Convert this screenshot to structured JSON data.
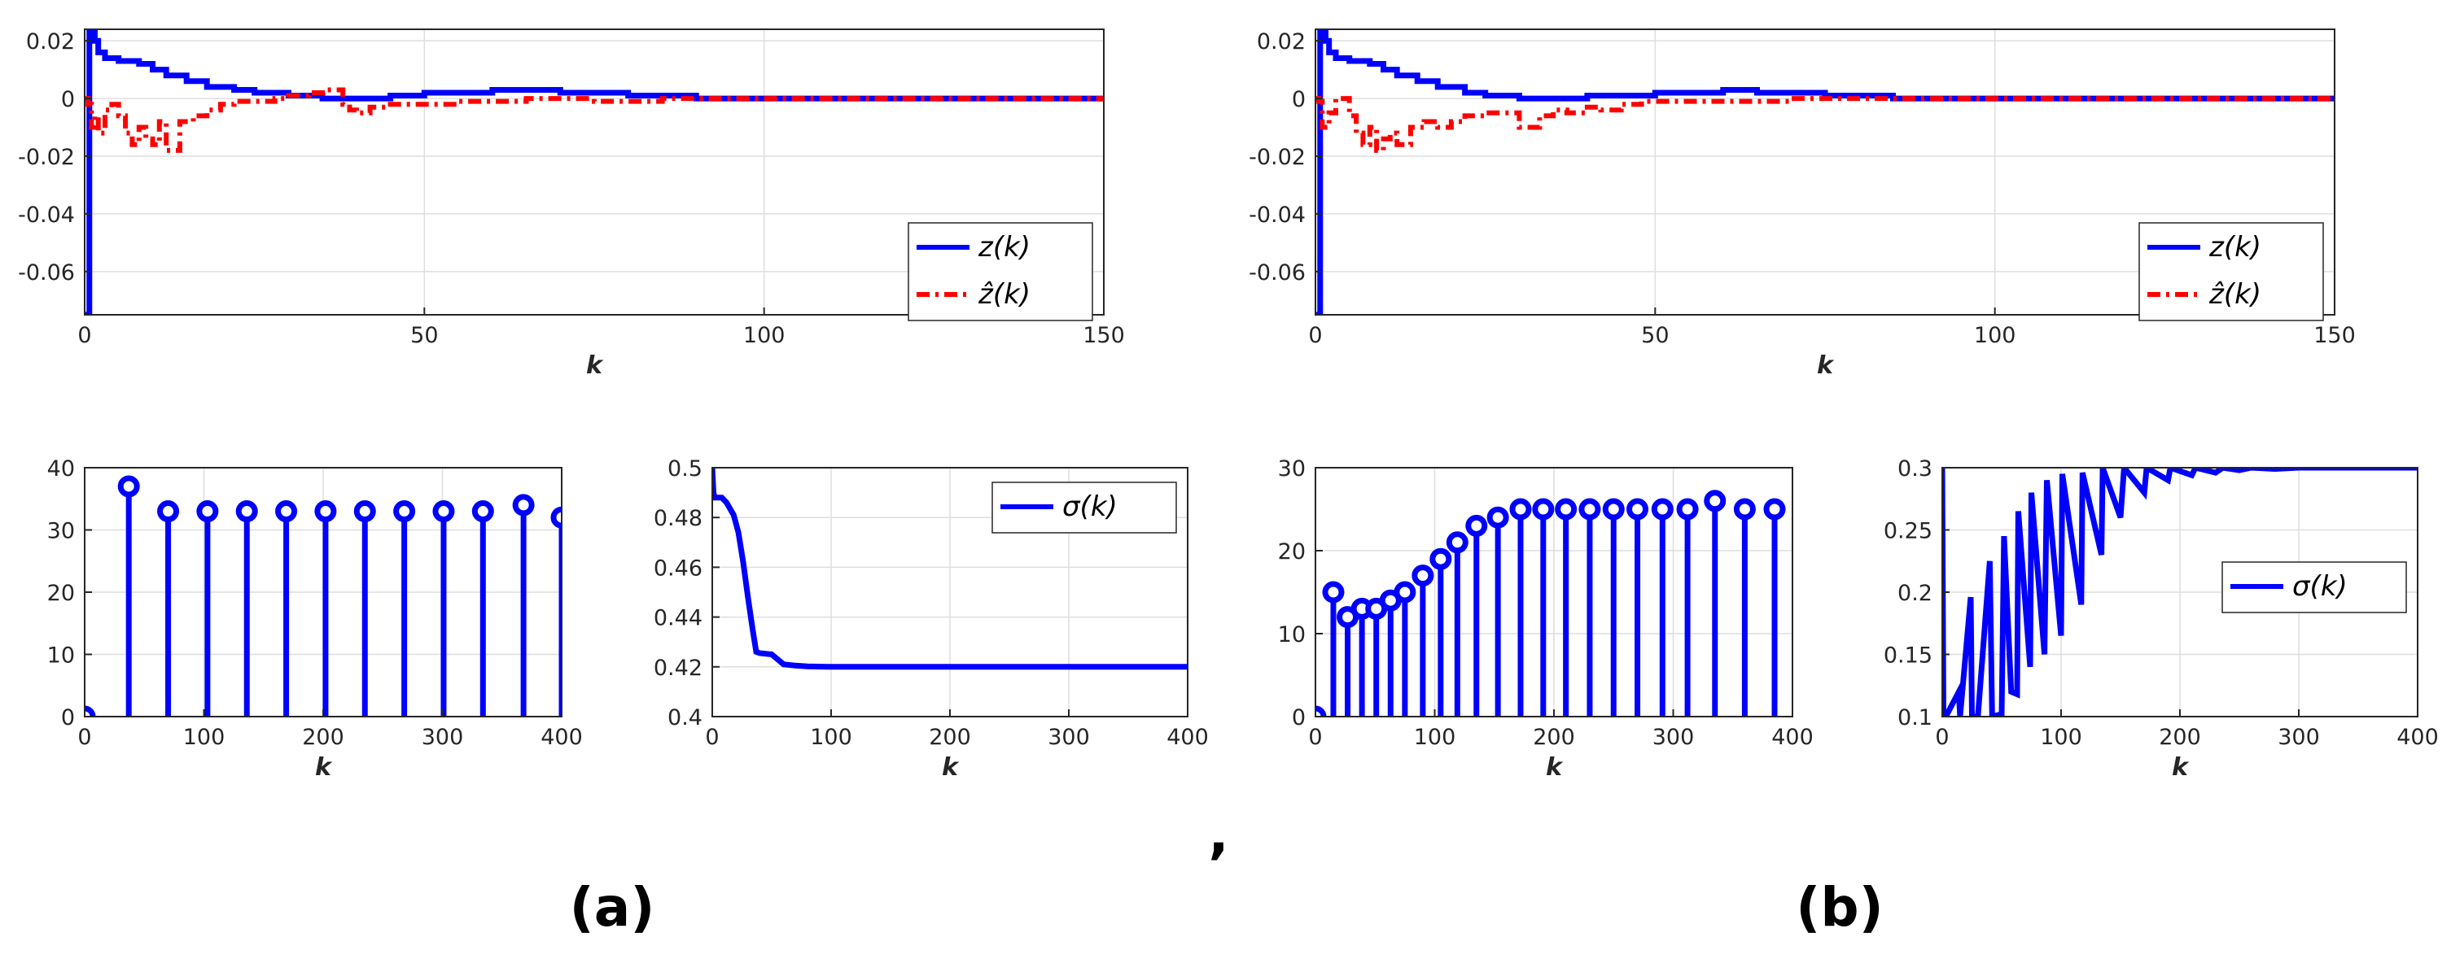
{
  "figure": {
    "panel_a_label": "(a)",
    "panel_b_label": "(b)",
    "separator": ","
  },
  "colors": {
    "blue": "#0000ff",
    "red": "#ff0000",
    "grid": "#dedede",
    "axis": "#262626"
  },
  "chart_data": [
    {
      "id": "a_top",
      "type": "line",
      "xlabel": "k",
      "ylabel": "",
      "xlim": [
        0,
        150
      ],
      "ylim": [
        -0.075,
        0.024
      ],
      "xticks": [
        0,
        50,
        100,
        150
      ],
      "xtick_labels": [
        "0",
        "50",
        "100",
        "150"
      ],
      "yticks": [
        0.02,
        0,
        -0.02,
        -0.04,
        -0.06
      ],
      "ytick_labels": [
        "0.02",
        "0",
        "-0.02",
        "-0.04",
        "-0.06"
      ],
      "grid": true,
      "legend": "right",
      "legend_labels": [
        "z(k)",
        "ẑ(k)"
      ],
      "series": [
        {
          "name": "z(k)",
          "style": "solid",
          "color": "#0000ff",
          "x": [
            0,
            0.5,
            0.7,
            1,
            1.5,
            2,
            3,
            5,
            8,
            10,
            12,
            15,
            18,
            22,
            25,
            30,
            35,
            40,
            45,
            50,
            55,
            60,
            65,
            70,
            75,
            80,
            85,
            90,
            100,
            110,
            120,
            130,
            140,
            150
          ],
          "y": [
            -0.075,
            -0.075,
            0.024,
            0.024,
            0.02,
            0.016,
            0.014,
            0.013,
            0.012,
            0.01,
            0.008,
            0.006,
            0.004,
            0.003,
            0.002,
            0.001,
            0,
            0,
            0.001,
            0.002,
            0.002,
            0.003,
            0.003,
            0.002,
            0.002,
            0.001,
            0.001,
            0,
            0,
            0,
            0,
            0,
            0,
            0
          ]
        },
        {
          "name": "ẑ(k)",
          "style": "dashdot",
          "color": "#ff0000",
          "x": [
            0,
            0.5,
            1,
            1.5,
            2,
            3,
            4,
            5,
            6,
            7,
            8,
            9,
            10,
            11,
            12,
            14,
            16,
            18,
            20,
            22,
            25,
            28,
            30,
            33,
            35,
            37,
            38,
            39,
            40,
            42,
            45,
            50,
            55,
            60,
            65,
            70,
            75,
            80,
            85,
            90,
            100,
            110,
            120,
            130,
            140,
            150
          ],
          "y": [
            0,
            -0.002,
            -0.01,
            -0.006,
            -0.012,
            -0.004,
            -0.002,
            -0.006,
            -0.012,
            -0.016,
            -0.01,
            -0.014,
            -0.016,
            -0.008,
            -0.018,
            -0.008,
            -0.006,
            -0.004,
            -0.002,
            -0.001,
            -0.001,
            0,
            0.001,
            0.002,
            0.003,
            0.003,
            -0.002,
            -0.004,
            -0.005,
            -0.003,
            -0.002,
            -0.002,
            -0.001,
            -0.001,
            0,
            0,
            -0.001,
            -0.001,
            0,
            0,
            0,
            0,
            0,
            0,
            0,
            0
          ]
        }
      ]
    },
    {
      "id": "b_top",
      "type": "line",
      "xlabel": "k",
      "ylabel": "",
      "xlim": [
        0,
        150
      ],
      "ylim": [
        -0.075,
        0.024
      ],
      "xticks": [
        0,
        50,
        100,
        150
      ],
      "xtick_labels": [
        "0",
        "50",
        "100",
        "150"
      ],
      "yticks": [
        0.02,
        0,
        -0.02,
        -0.04,
        -0.06
      ],
      "ytick_labels": [
        "0.02",
        "0",
        "-0.02",
        "-0.04",
        "-0.06"
      ],
      "grid": true,
      "legend": "right",
      "legend_labels": [
        "z(k)",
        "ẑ(k)"
      ],
      "series": [
        {
          "name": "z(k)",
          "style": "solid",
          "color": "#0000ff",
          "x": [
            0,
            0.5,
            0.7,
            1,
            1.5,
            2,
            3,
            5,
            8,
            10,
            12,
            15,
            18,
            22,
            25,
            30,
            35,
            40,
            45,
            50,
            55,
            60,
            65,
            70,
            75,
            80,
            85,
            90,
            100,
            110,
            120,
            130,
            140,
            150
          ],
          "y": [
            -0.075,
            -0.075,
            0.024,
            0.024,
            0.02,
            0.016,
            0.014,
            0.013,
            0.012,
            0.01,
            0.008,
            0.006,
            0.004,
            0.002,
            0.001,
            0,
            0,
            0.001,
            0.001,
            0.002,
            0.002,
            0.003,
            0.002,
            0.002,
            0.001,
            0.001,
            0,
            0,
            0,
            0,
            0,
            0,
            0,
            0
          ]
        },
        {
          "name": "ẑ(k)",
          "style": "dashdot",
          "color": "#ff0000",
          "x": [
            0,
            0.5,
            1,
            2,
            3,
            4,
            5,
            6,
            7,
            8,
            9,
            10,
            11,
            12,
            14,
            16,
            18,
            20,
            22,
            25,
            28,
            30,
            33,
            35,
            37,
            40,
            42,
            45,
            48,
            50,
            55,
            60,
            65,
            70,
            75,
            80,
            90,
            100,
            110,
            120,
            130,
            140,
            150
          ],
          "y": [
            0,
            -0.001,
            -0.01,
            -0.005,
            0,
            0,
            -0.006,
            -0.012,
            -0.016,
            -0.01,
            -0.018,
            -0.014,
            -0.012,
            -0.016,
            -0.01,
            -0.008,
            -0.01,
            -0.008,
            -0.006,
            -0.005,
            -0.005,
            -0.01,
            -0.006,
            -0.004,
            -0.005,
            -0.003,
            -0.004,
            -0.002,
            -0.001,
            -0.001,
            -0.001,
            -0.001,
            -0.001,
            0,
            0,
            0,
            0,
            0,
            0,
            0,
            0,
            0,
            0
          ]
        }
      ]
    },
    {
      "id": "a_stem",
      "type": "stem",
      "xlabel": "k",
      "ylabel": "",
      "xlim": [
        0,
        400
      ],
      "ylim": [
        0,
        40
      ],
      "xticks": [
        0,
        100,
        200,
        300,
        400
      ],
      "xtick_labels": [
        "0",
        "100",
        "200",
        "300",
        "400"
      ],
      "yticks": [
        0,
        10,
        20,
        30,
        40
      ],
      "ytick_labels": [
        "0",
        "10",
        "20",
        "30",
        "40"
      ],
      "grid": true,
      "x": [
        0,
        37,
        70,
        103,
        136,
        169,
        202,
        235,
        268,
        301,
        334,
        368,
        400
      ],
      "values": [
        0,
        37,
        33,
        33,
        33,
        33,
        33,
        33,
        33,
        33,
        33,
        34,
        32
      ]
    },
    {
      "id": "a_sigma",
      "type": "line",
      "xlabel": "k",
      "ylabel": "",
      "xlim": [
        0,
        400
      ],
      "ylim": [
        0.4,
        0.5
      ],
      "xticks": [
        0,
        100,
        200,
        300,
        400
      ],
      "xtick_labels": [
        "0",
        "100",
        "200",
        "300",
        "400"
      ],
      "yticks": [
        0.5,
        0.48,
        0.46,
        0.44,
        0.42,
        0.4
      ],
      "ytick_labels": [
        "0.5",
        "0.48",
        "0.46",
        "0.44",
        "0.42",
        "0.4"
      ],
      "grid": true,
      "legend": "top-right",
      "legend_labels": [
        "σ(k)"
      ],
      "series": [
        {
          "name": "σ(k)",
          "style": "solid",
          "color": "#0000ff",
          "x": [
            0,
            1,
            2,
            8,
            12,
            18,
            22,
            26,
            30,
            34,
            37,
            40,
            50,
            55,
            60,
            70,
            80,
            100,
            150,
            200,
            300,
            400
          ],
          "y": [
            0.5,
            0.49,
            0.488,
            0.488,
            0.486,
            0.481,
            0.474,
            0.462,
            0.448,
            0.435,
            0.426,
            0.4255,
            0.425,
            0.423,
            0.421,
            0.4205,
            0.4202,
            0.42,
            0.42,
            0.42,
            0.42,
            0.42
          ]
        }
      ]
    },
    {
      "id": "b_stem",
      "type": "stem",
      "xlabel": "k",
      "ylabel": "",
      "xlim": [
        0,
        400
      ],
      "ylim": [
        0,
        30
      ],
      "xticks": [
        0,
        100,
        200,
        300,
        400
      ],
      "xtick_labels": [
        "0",
        "100",
        "200",
        "300",
        "400"
      ],
      "yticks": [
        0,
        10,
        20,
        30
      ],
      "ytick_labels": [
        "0",
        "10",
        "20",
        "30"
      ],
      "grid": true,
      "x": [
        0,
        15,
        27,
        39,
        51,
        63,
        75,
        90,
        105,
        119,
        135,
        153,
        172,
        191,
        210,
        230,
        250,
        270,
        291,
        312,
        335,
        360,
        385
      ],
      "values": [
        0,
        15,
        12,
        13,
        13,
        14,
        15,
        17,
        19,
        21,
        23,
        24,
        25,
        25,
        25,
        25,
        25,
        25,
        25,
        25,
        26,
        25,
        25
      ]
    },
    {
      "id": "b_sigma",
      "type": "line",
      "xlabel": "k",
      "ylabel": "",
      "xlim": [
        0,
        400
      ],
      "ylim": [
        0.1,
        0.3
      ],
      "xticks": [
        0,
        100,
        200,
        300,
        400
      ],
      "xtick_labels": [
        "0",
        "100",
        "200",
        "300",
        "400"
      ],
      "yticks": [
        0.3,
        0.25,
        0.2,
        0.15,
        0.1
      ],
      "ytick_labels": [
        "0.3",
        "0.25",
        "0.2",
        "0.15",
        "0.1"
      ],
      "grid": true,
      "legend": "right",
      "legend_labels": [
        "σ(k)"
      ],
      "series": [
        {
          "name": "σ(k)",
          "style": "solid",
          "color": "#0000ff",
          "x": [
            0,
            1,
            3,
            14,
            15,
            24,
            25,
            30,
            40,
            42,
            50,
            52,
            58,
            63,
            64,
            74,
            75,
            86,
            88,
            100,
            101,
            117,
            118,
            134,
            135,
            150,
            153,
            170,
            172,
            190,
            192,
            210,
            213,
            230,
            236,
            250,
            260,
            280,
            300,
            340,
            400
          ],
          "y": [
            0.3,
            0.1,
            0.1,
            0.12,
            0.1,
            0.196,
            0.1,
            0.1,
            0.225,
            0.1,
            0.102,
            0.245,
            0.12,
            0.118,
            0.265,
            0.14,
            0.28,
            0.15,
            0.29,
            0.165,
            0.295,
            0.19,
            0.296,
            0.23,
            0.3,
            0.26,
            0.3,
            0.28,
            0.3,
            0.29,
            0.3,
            0.294,
            0.3,
            0.296,
            0.3,
            0.298,
            0.3,
            0.299,
            0.3,
            0.3,
            0.3
          ]
        }
      ]
    }
  ]
}
